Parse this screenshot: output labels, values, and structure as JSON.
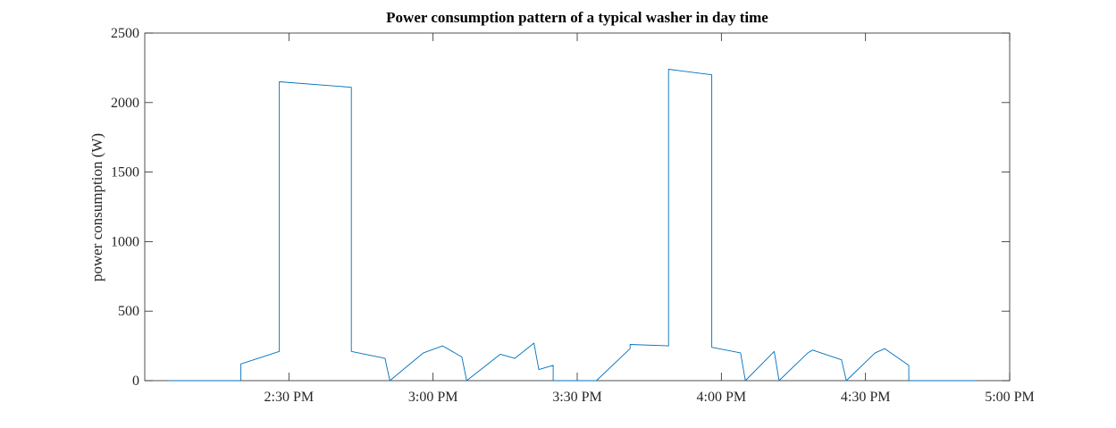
{
  "chart_data": {
    "type": "line",
    "title": "Power consumption pattern of a typical washer in day time",
    "xlabel": "",
    "ylabel": "power consumption (W)",
    "xlim": [
      "2:00 PM",
      "5:00 PM"
    ],
    "ylim": [
      0,
      2500
    ],
    "x_ticks": [
      "2:30 PM",
      "3:00 PM",
      "3:30 PM",
      "4:00 PM",
      "4:30 PM",
      "5:00 PM"
    ],
    "y_ticks": [
      0,
      500,
      1000,
      1500,
      2000,
      2500
    ],
    "grid": false,
    "legend": "none",
    "line_color": "#0072BD",
    "series": [
      {
        "x": [
          "2:05 PM",
          "2:20 PM",
          "2:20 PM",
          "2:28 PM",
          "2:28 PM",
          "2:43 PM",
          "2:43 PM",
          "2:50 PM",
          "2:51 PM",
          "2:58 PM",
          "3:02 PM",
          "3:06 PM",
          "3:07 PM",
          "3:14 PM",
          "3:17 PM",
          "3:21 PM",
          "3:22 PM",
          "3:25 PM",
          "3:25 PM",
          "3:33 PM",
          "3:34 PM",
          "3:41 PM",
          "3:41 PM",
          "3:49 PM",
          "3:49 PM",
          "3:58 PM",
          "3:58 PM",
          "4:04 PM",
          "4:05 PM",
          "4:11 PM",
          "4:12 PM",
          "4:18 PM",
          "4:19 PM",
          "4:25 PM",
          "4:26 PM",
          "4:32 PM",
          "4:34 PM",
          "4:39 PM",
          "4:39 PM",
          "4:53 PM"
        ],
        "y": [
          0,
          0,
          120,
          210,
          2150,
          2110,
          210,
          160,
          0,
          200,
          250,
          170,
          0,
          190,
          160,
          270,
          80,
          110,
          0,
          0,
          0,
          230,
          260,
          250,
          2240,
          2200,
          240,
          200,
          0,
          210,
          0,
          200,
          220,
          150,
          0,
          200,
          230,
          110,
          0,
          0
        ]
      }
    ]
  }
}
